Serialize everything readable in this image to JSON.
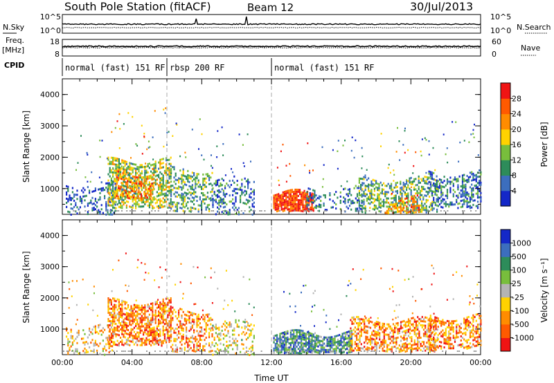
{
  "header": {
    "station": "South Pole Station (fitACF)",
    "beam": "Beam 12",
    "date": "30/Jul/2013"
  },
  "left_labels": {
    "nsky": "N.Sky",
    "freq_top": "Freq.",
    "freq_unit": "[MHz]",
    "cpid": "CPID"
  },
  "right_labels": {
    "nsearch": "N.Search",
    "nave": "Nave"
  },
  "noise_panel": {
    "left_ticks": [
      "10^5",
      "10^0"
    ],
    "right_ticks": [
      "10^5",
      "10^0"
    ]
  },
  "freq_panel": {
    "left_ticks": [
      "18",
      "8"
    ],
    "right_ticks": [
      "60",
      "0"
    ]
  },
  "cpid_segments": [
    {
      "label": "normal (fast) 151 RF",
      "start": 0,
      "end": 6
    },
    {
      "label": "rbsp 200 RF",
      "start": 6,
      "end": 12
    },
    {
      "label": "normal (fast) 151 RF",
      "start": 12,
      "end": 24
    }
  ],
  "colors": {
    "power": [
      "#1428c8",
      "#3c6ebe",
      "#2d8c5a",
      "#78be3c",
      "#ffd200",
      "#ff8c00",
      "#ff5a00",
      "#f01414"
    ],
    "velocity": [
      "#1428c8",
      "#3c6ebe",
      "#2d8c5a",
      "#78be3c",
      "#b4b4b4",
      "#ffd200",
      "#ff8c00",
      "#ff5a00",
      "#f01414"
    ]
  },
  "chart_data": [
    {
      "type": "heatmap",
      "name": "Power",
      "xlabel": "",
      "ylabel": "Slant Range [km]",
      "xlim": [
        0,
        24
      ],
      "ylim": [
        180,
        4500
      ],
      "x_ticks": [],
      "y_ticks": [
        "1000",
        "2000",
        "3000",
        "4000"
      ],
      "colorbar": {
        "label": "Power [dB]",
        "ticks": [
          "4",
          "8",
          "12",
          "16",
          "20",
          "24",
          "28"
        ],
        "range": [
          0,
          32
        ]
      },
      "regions": [
        {
          "t0": 0.2,
          "t1": 3.0,
          "r0": 200,
          "r1": 1150,
          "level": 0.15,
          "density": 0.32
        },
        {
          "t0": 2.6,
          "t1": 6.2,
          "r0": 400,
          "r1": 1900,
          "level": 0.45,
          "density": 0.58
        },
        {
          "t0": 3.0,
          "t1": 5.2,
          "r0": 700,
          "r1": 1500,
          "level": 0.72,
          "density": 0.5
        },
        {
          "t0": 6.2,
          "t1": 8.6,
          "r0": 300,
          "r1": 1600,
          "level": 0.35,
          "density": 0.42
        },
        {
          "t0": 8.6,
          "t1": 11.0,
          "r0": 200,
          "r1": 1300,
          "level": 0.2,
          "density": 0.3
        },
        {
          "t0": 12.1,
          "t1": 14.4,
          "r0": 300,
          "r1": 880,
          "level": 0.88,
          "density": 0.85
        },
        {
          "t0": 14.0,
          "t1": 17.2,
          "r0": 300,
          "r1": 1000,
          "level": 0.2,
          "density": 0.32
        },
        {
          "t0": 17.0,
          "t1": 21.5,
          "r0": 250,
          "r1": 1300,
          "level": 0.38,
          "density": 0.5
        },
        {
          "t0": 18.5,
          "t1": 20.5,
          "r0": 250,
          "r1": 700,
          "level": 0.7,
          "density": 0.45
        },
        {
          "t0": 21.0,
          "t1": 24.0,
          "r0": 400,
          "r1": 1500,
          "level": 0.22,
          "density": 0.42
        }
      ]
    },
    {
      "type": "heatmap",
      "name": "Velocity",
      "xlabel": "Time UT",
      "ylabel": "Slant Range [km]",
      "xlim": [
        0,
        24
      ],
      "ylim": [
        180,
        4500
      ],
      "x_ticks": [
        "00:00",
        "04:00",
        "08:00",
        "12:00",
        "16:00",
        "20:00",
        "00:00"
      ],
      "y_ticks": [
        "1000",
        "2000",
        "3000",
        "4000"
      ],
      "colorbar": {
        "label": "Velocity [m s⁻¹]",
        "ticks": [
          "1000",
          "500",
          "100",
          "25",
          "-25",
          "-100",
          "-500",
          "-1000"
        ],
        "range": [
          -1200,
          1200
        ]
      },
      "regions": [
        {
          "t0": 0.2,
          "t1": 3.0,
          "r0": 200,
          "r1": 1100,
          "level": 0.62,
          "density": 0.25
        },
        {
          "t0": 2.6,
          "t1": 6.2,
          "r0": 500,
          "r1": 1900,
          "level": 0.75,
          "density": 0.62
        },
        {
          "t0": 6.2,
          "t1": 8.6,
          "r0": 300,
          "r1": 1600,
          "level": 0.72,
          "density": 0.45
        },
        {
          "t0": 8.6,
          "t1": 11.0,
          "r0": 200,
          "r1": 1200,
          "level": 0.55,
          "density": 0.28
        },
        {
          "t0": 12.1,
          "t1": 16.6,
          "r0": 250,
          "r1": 880,
          "level": 0.28,
          "density": 0.78
        },
        {
          "t0": 16.5,
          "t1": 21.5,
          "r0": 300,
          "r1": 1300,
          "level": 0.72,
          "density": 0.5
        },
        {
          "t0": 21.0,
          "t1": 24.0,
          "r0": 400,
          "r1": 1400,
          "level": 0.75,
          "density": 0.45
        }
      ]
    }
  ],
  "x_axis_label": "Time UT"
}
